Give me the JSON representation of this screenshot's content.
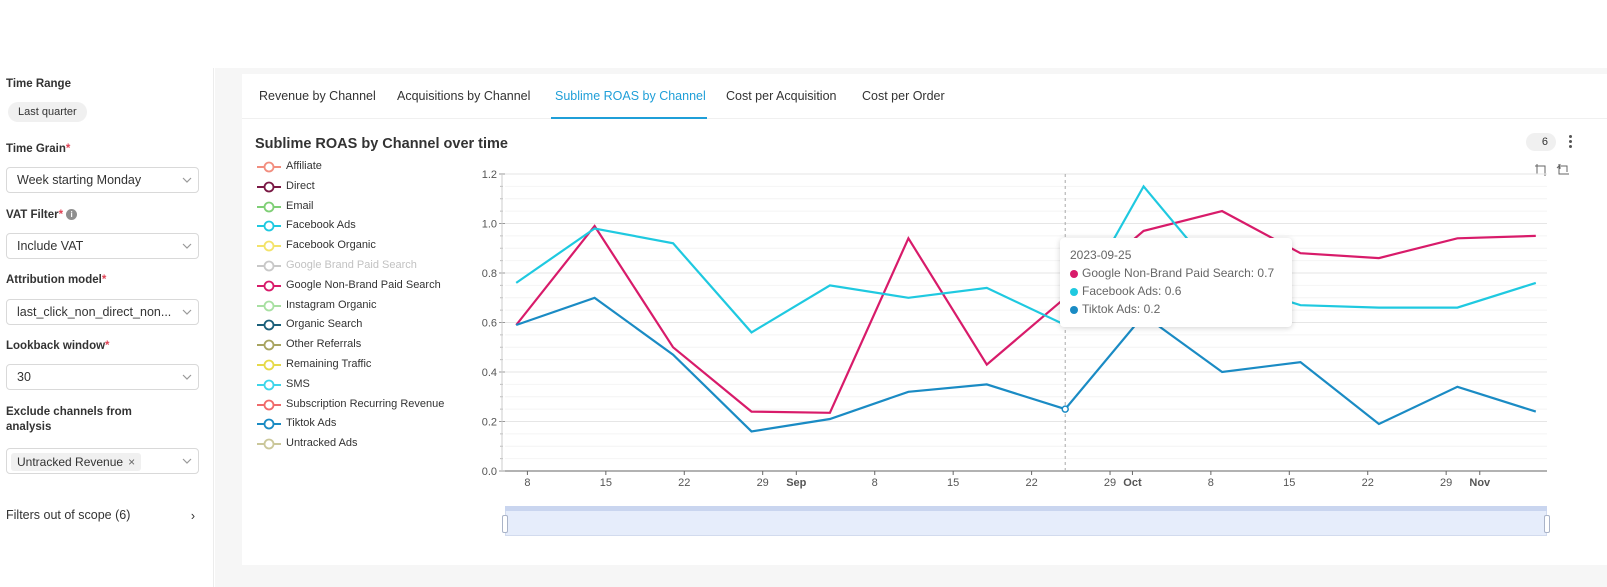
{
  "sidebar": {
    "time_range": {
      "label": "Time Range",
      "value": "Last quarter"
    },
    "time_grain": {
      "label": "Time Grain",
      "required": "*",
      "value": "Week starting Monday"
    },
    "vat_filter": {
      "label": "VAT Filter",
      "required": "*",
      "value": "Include VAT"
    },
    "attribution_model": {
      "label": "Attribution model",
      "required": "*",
      "value": "last_click_non_direct_non..."
    },
    "lookback_window": {
      "label": "Lookback window",
      "required": "*",
      "value": "30"
    },
    "exclude_channels": {
      "label_line1": "Exclude channels from",
      "label_line2": "analysis",
      "chip": "Untracked Revenue",
      "chip_close": "×"
    },
    "filters_out_of_scope": {
      "label": "Filters out of scope (6)",
      "arrow": "›"
    }
  },
  "tabs": [
    {
      "label": "Revenue by Channel",
      "active": false
    },
    {
      "label": "Acquisitions by Channel",
      "active": false
    },
    {
      "label": "Sublime ROAS by Channel",
      "active": true
    },
    {
      "label": "Cost per Acquisition",
      "active": false
    },
    {
      "label": "Cost per Order",
      "active": false
    }
  ],
  "chart_header": {
    "title": "Sublime ROAS by Channel over time",
    "badge": "6"
  },
  "legend": [
    {
      "name": "Affiliate",
      "color": "#f28e7f",
      "dim": false
    },
    {
      "name": "Direct",
      "color": "#7a1844",
      "dim": false
    },
    {
      "name": "Email",
      "color": "#7fcf76",
      "dim": false
    },
    {
      "name": "Facebook Ads",
      "color": "#1fc9e0",
      "dim": false
    },
    {
      "name": "Facebook Organic",
      "color": "#f3e36a",
      "dim": false
    },
    {
      "name": "Google Brand Paid Search",
      "color": "#c8c8c8",
      "dim": true
    },
    {
      "name": "Google Non-Brand Paid Search",
      "color": "#d81b6a",
      "dim": false
    },
    {
      "name": "Instagram Organic",
      "color": "#a8e0a2",
      "dim": false
    },
    {
      "name": "Organic Search",
      "color": "#1a5f7a",
      "dim": false
    },
    {
      "name": "Other Referrals",
      "color": "#a8a460",
      "dim": false
    },
    {
      "name": "Remaining Traffic",
      "color": "#e6d94a",
      "dim": false
    },
    {
      "name": "SMS",
      "color": "#3ed6ea",
      "dim": false
    },
    {
      "name": "Subscription Recurring Revenue",
      "color": "#f06a6a",
      "dim": false
    },
    {
      "name": "Tiktok Ads",
      "color": "#1a8bc4",
      "dim": false
    },
    {
      "name": "Untracked Ads",
      "color": "#cbc79a",
      "dim": false
    }
  ],
  "tooltip": {
    "date": "2023-09-25",
    "rows": [
      {
        "text": "Google Non-Brand Paid Search: 0.7",
        "color": "#d81b6a"
      },
      {
        "text": "Facebook Ads: 0.6",
        "color": "#1fc9e0"
      },
      {
        "text": "Tiktok Ads: 0.2",
        "color": "#1a8bc4"
      }
    ]
  },
  "chart_data": {
    "type": "line",
    "title": "Sublime ROAS by Channel over time",
    "x": [
      "2023-08-07",
      "2023-08-14",
      "2023-08-21",
      "2023-08-28",
      "2023-09-04",
      "2023-09-11",
      "2023-09-18",
      "2023-09-25",
      "2023-10-02",
      "2023-10-09",
      "2023-10-16",
      "2023-10-23",
      "2023-10-30",
      "2023-11-06"
    ],
    "x_tick_labels": [
      "8",
      "15",
      "22",
      "29",
      "Sep",
      "8",
      "15",
      "22",
      "29",
      "Oct",
      "8",
      "15",
      "22",
      "29",
      "Nov"
    ],
    "x_tick_dates": [
      "2023-08-08",
      "2023-08-15",
      "2023-08-22",
      "2023-08-29",
      "2023-09-01",
      "2023-09-08",
      "2023-09-15",
      "2023-09-22",
      "2023-09-29",
      "2023-10-01",
      "2023-10-08",
      "2023-10-15",
      "2023-10-22",
      "2023-10-29",
      "2023-11-01"
    ],
    "bold_ticks": [
      "Sep",
      "Oct",
      "Nov"
    ],
    "x_range": [
      "2023-08-06",
      "2023-11-07"
    ],
    "ylim": [
      0,
      1.2
    ],
    "y_ticks": [
      "0.0",
      "0.2",
      "0.4",
      "0.6",
      "0.8",
      "1.0",
      "1.2"
    ],
    "grid": true,
    "series": [
      {
        "name": "Google Non-Brand Paid Search",
        "color": "#d81b6a",
        "values": [
          0.59,
          0.99,
          0.5,
          0.24,
          0.235,
          0.94,
          0.43,
          0.7,
          0.97,
          1.05,
          0.88,
          0.86,
          0.94,
          0.95
        ]
      },
      {
        "name": "Facebook Ads",
        "color": "#1fc9e0",
        "values": [
          0.76,
          0.98,
          0.92,
          0.56,
          0.75,
          0.7,
          0.74,
          0.59,
          1.15,
          0.77,
          0.67,
          0.66,
          0.66,
          0.76
        ]
      },
      {
        "name": "Tiktok Ads",
        "color": "#1a8bc4",
        "values": [
          0.59,
          0.7,
          0.47,
          0.16,
          0.21,
          0.32,
          0.35,
          0.25,
          0.63,
          0.4,
          0.44,
          0.19,
          0.34,
          0.24
        ]
      }
    ],
    "hover_date": "2023-09-25"
  }
}
